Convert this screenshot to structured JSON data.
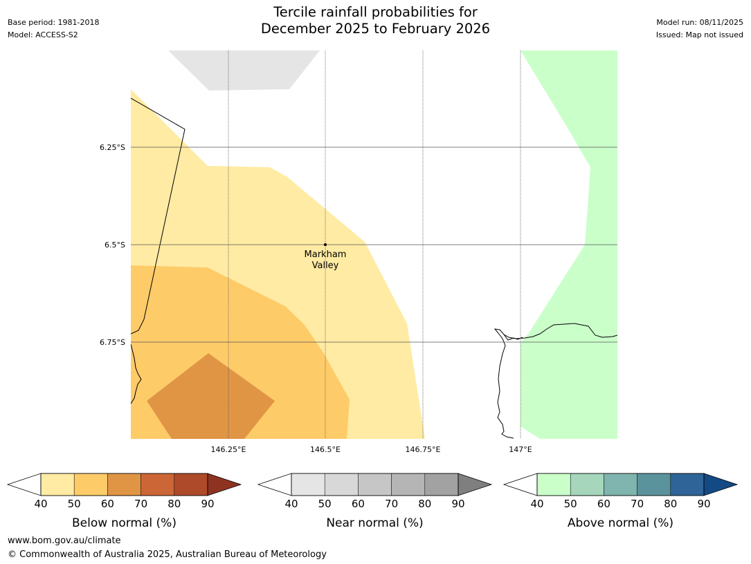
{
  "header": {
    "base_period": "Base period: 1981-2018",
    "model": "Model: ACCESS-S2",
    "model_run": "Model run: 08/11/2025",
    "issued": "Issued: Map not issued",
    "title_line1": "Tercile rainfall probabilities for",
    "title_line2": "December 2025 to February 2026"
  },
  "map": {
    "lat_labels": [
      "6.25°S",
      "6.5°S",
      "6.75°S"
    ],
    "lon_labels": [
      "146.25°E",
      "146.5°E",
      "146.75°E",
      "147°E"
    ],
    "place_label_line1": "Markham",
    "place_label_line2": "Valley",
    "zone_colors": {
      "below_40": "#ffeba3",
      "below_50": "#fecb69",
      "below_60": "#e09545",
      "near_40": "#e5e5e5",
      "above_40": "#caffca"
    }
  },
  "legends": [
    {
      "title": "Below normal (%)",
      "ticks": [
        "40",
        "50",
        "60",
        "70",
        "80",
        "90"
      ],
      "colors": [
        "#ffeba3",
        "#fecb69",
        "#e09545",
        "#cc6636",
        "#ae4a2a"
      ],
      "extend_color": "#8e3322"
    },
    {
      "title": "Near normal (%)",
      "ticks": [
        "40",
        "50",
        "60",
        "70",
        "80",
        "90"
      ],
      "colors": [
        "#e5e5e5",
        "#d8d8d8",
        "#c6c6c6",
        "#b5b5b5",
        "#a2a2a2"
      ],
      "extend_color": "#7f7f7f"
    },
    {
      "title": "Above normal (%)",
      "ticks": [
        "40",
        "50",
        "60",
        "70",
        "80",
        "90"
      ],
      "colors": [
        "#caffca",
        "#a6d6bb",
        "#80b4ae",
        "#5b939d",
        "#2e6497"
      ],
      "extend_color": "#134a85"
    }
  ],
  "footer": {
    "url": "www.bom.gov.au/climate",
    "copyright": "© Commonwealth of Australia 2025, Australian Bureau of Meteorology"
  }
}
